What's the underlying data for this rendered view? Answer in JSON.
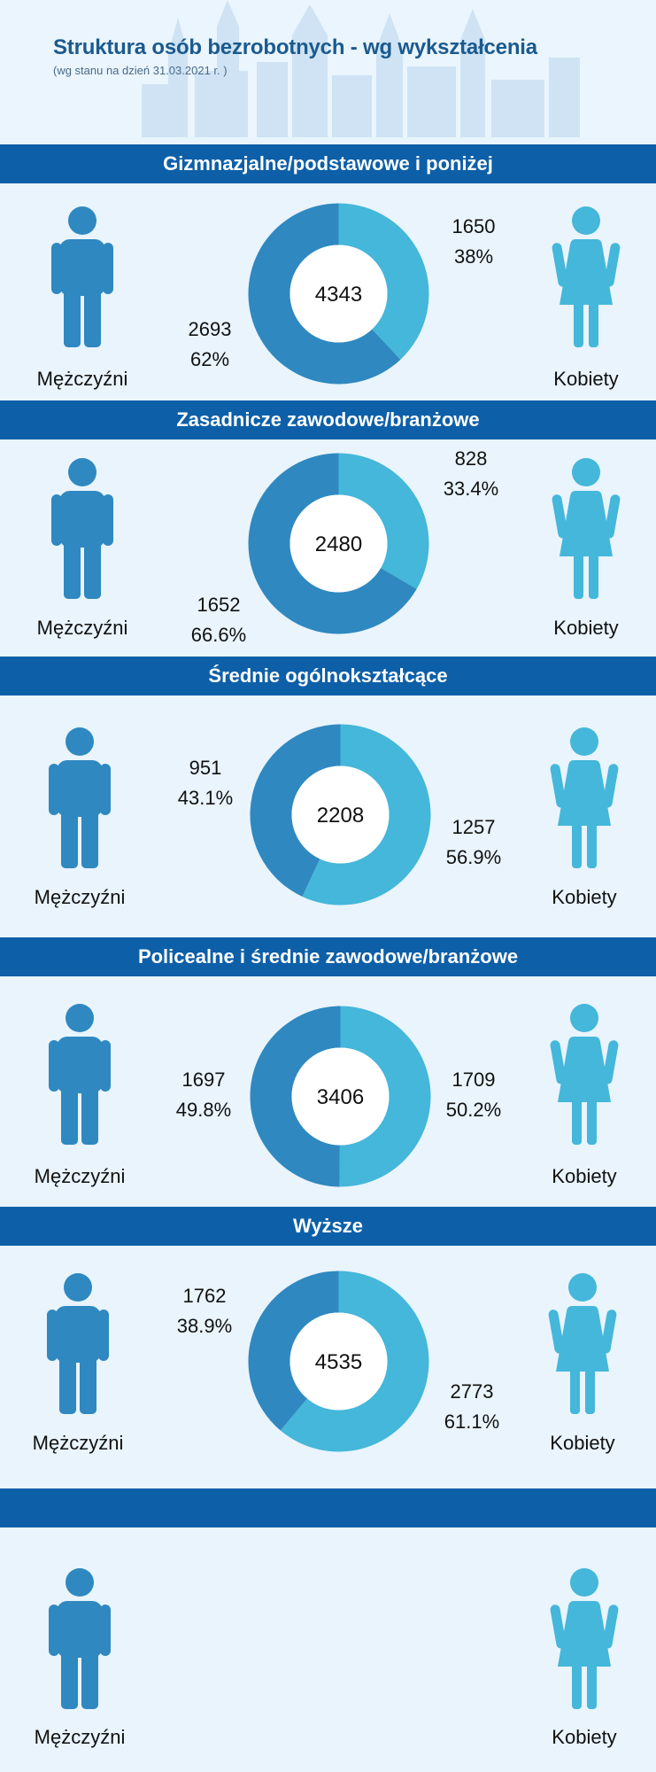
{
  "header": {
    "title": "Struktura osób bezrobotnych - wg wykształcenia",
    "subtitle": "(wg stanu na dzień 31.03.2021 r. )"
  },
  "labels": {
    "men": "Mężczyźni",
    "women": "Kobiety"
  },
  "colors": {
    "men": "#2f88c0",
    "women": "#44b7da",
    "band": "#0d5fa8",
    "background": "#e9f4fc"
  },
  "chart_data": [
    {
      "type": "pie",
      "title": "Gizmnazjalne/podstawowe i poniżej",
      "total": "4343",
      "categories": [
        "Kobiety",
        "Mężczyźni"
      ],
      "values": [
        1650,
        2693
      ],
      "value_labels": [
        "1650",
        "2693"
      ],
      "percent_labels": [
        "38%",
        "62%"
      ]
    },
    {
      "type": "pie",
      "title": "Zasadnicze zawodowe/branżowe",
      "total": "2480",
      "categories": [
        "Kobiety",
        "Mężczyźni"
      ],
      "values": [
        828,
        1652
      ],
      "value_labels": [
        "828",
        "1652"
      ],
      "percent_labels": [
        "33.4%",
        "66.6%"
      ]
    },
    {
      "type": "pie",
      "title": "Średnie ogólnokształcące",
      "total": "2208",
      "categories": [
        "Kobiety",
        "Mężczyźni"
      ],
      "values": [
        1257,
        951
      ],
      "value_labels": [
        "1257",
        "951"
      ],
      "percent_labels": [
        "56.9%",
        "43.1%"
      ]
    },
    {
      "type": "pie",
      "title": "Policealne i średnie zawodowe/branżowe",
      "total": "3406",
      "categories": [
        "Kobiety",
        "Mężczyźni"
      ],
      "values": [
        1709,
        1697
      ],
      "value_labels": [
        "1709",
        "1697"
      ],
      "percent_labels": [
        "50.2%",
        "49.8%"
      ]
    },
    {
      "type": "pie",
      "title": "Wyższe",
      "total": "4535",
      "categories": [
        "Kobiety",
        "Mężczyźni"
      ],
      "values": [
        2773,
        1762
      ],
      "value_labels": [
        "2773",
        "1762"
      ],
      "percent_labels": [
        "61.1%",
        "38.9%"
      ]
    }
  ]
}
